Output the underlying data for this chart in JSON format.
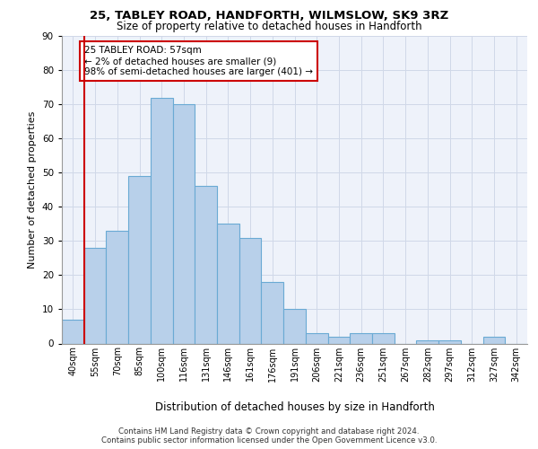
{
  "title1": "25, TABLEY ROAD, HANDFORTH, WILMSLOW, SK9 3RZ",
  "title2": "Size of property relative to detached houses in Handforth",
  "xlabel": "Distribution of detached houses by size in Handforth",
  "ylabel": "Number of detached properties",
  "categories": [
    "40sqm",
    "55sqm",
    "70sqm",
    "85sqm",
    "100sqm",
    "116sqm",
    "131sqm",
    "146sqm",
    "161sqm",
    "176sqm",
    "191sqm",
    "206sqm",
    "221sqm",
    "236sqm",
    "251sqm",
    "267sqm",
    "282sqm",
    "297sqm",
    "312sqm",
    "327sqm",
    "342sqm"
  ],
  "values": [
    7,
    28,
    33,
    49,
    72,
    70,
    46,
    35,
    31,
    18,
    10,
    3,
    2,
    3,
    3,
    0,
    1,
    1,
    0,
    2,
    0
  ],
  "bar_color": "#b8d0ea",
  "bar_edge_color": "#6aaad4",
  "subject_line_color": "#cc0000",
  "annotation_text": "25 TABLEY ROAD: 57sqm\n← 2% of detached houses are smaller (9)\n98% of semi-detached houses are larger (401) →",
  "annotation_box_color": "#ffffff",
  "annotation_box_edge": "#cc0000",
  "grid_color": "#d0d8e8",
  "background_color": "#eef2fa",
  "footer_line1": "Contains HM Land Registry data © Crown copyright and database right 2024.",
  "footer_line2": "Contains public sector information licensed under the Open Government Licence v3.0.",
  "ylim": [
    0,
    90
  ],
  "yticks": [
    0,
    10,
    20,
    30,
    40,
    50,
    60,
    70,
    80,
    90
  ]
}
